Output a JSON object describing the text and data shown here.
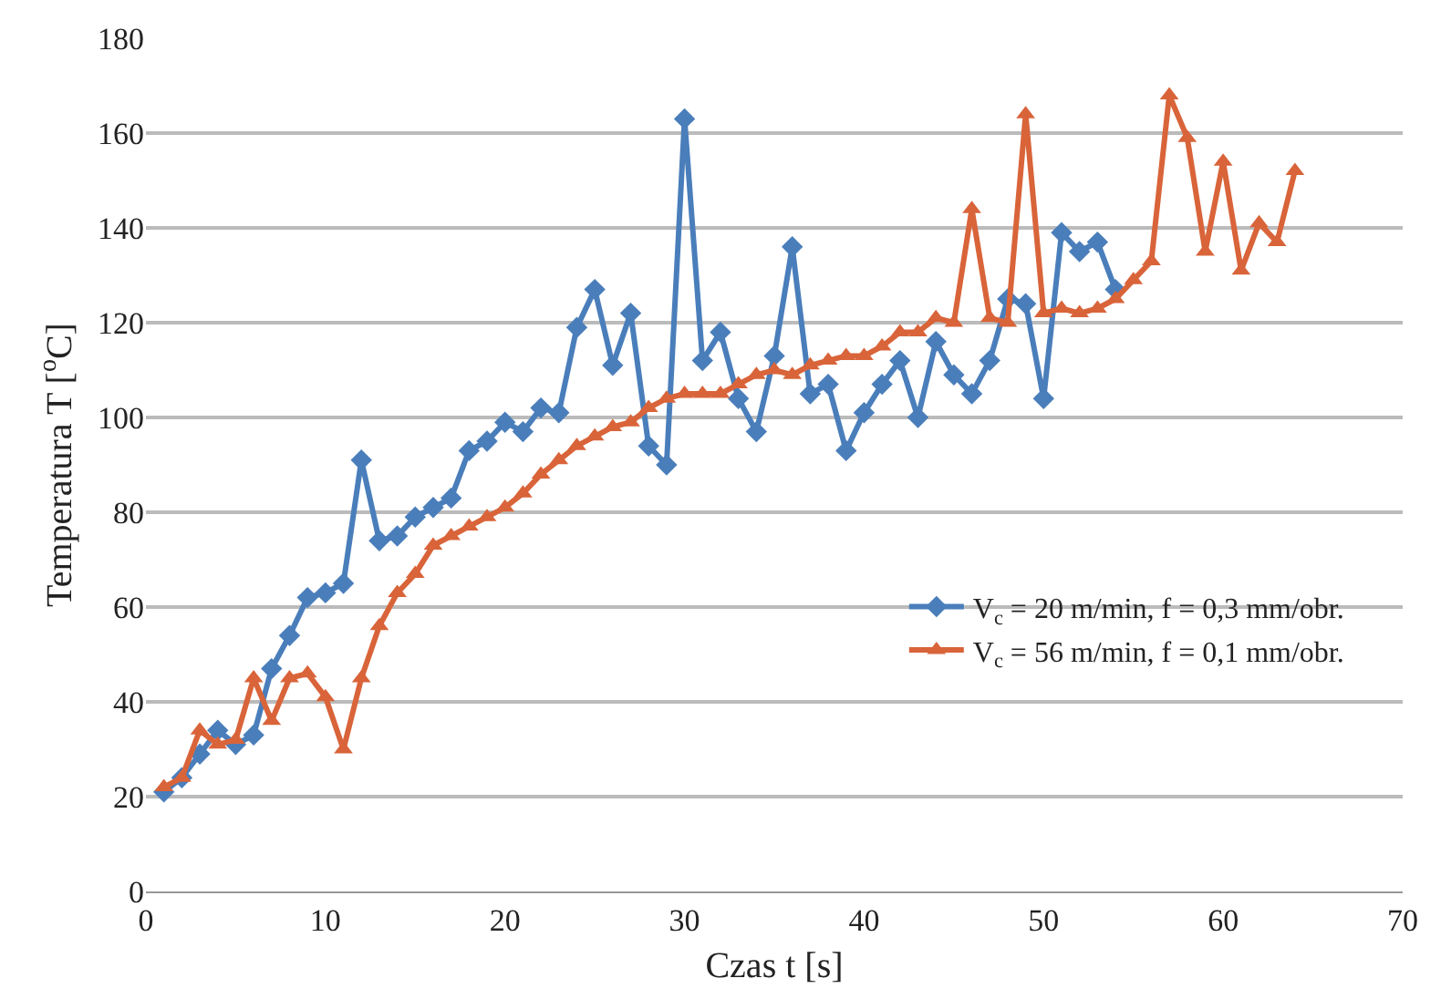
{
  "chart_data": {
    "type": "line",
    "xlabel": "Czas t [s]",
    "ylabel": "Temperatura T [$^{o}$C]",
    "xlim": [
      0,
      70
    ],
    "xticks": [
      0,
      10,
      20,
      30,
      40,
      50,
      60,
      70
    ],
    "ylim": [
      0,
      180
    ],
    "yticks": [
      0,
      20,
      40,
      60,
      80,
      100,
      120,
      140,
      160,
      180
    ],
    "grid": "y",
    "legend": "bottom right",
    "series": [
      {
        "name": "V$_{c}$ = 20 m/min, f = 0,3 mm/obr.",
        "color": "#4a7ebb",
        "marker": "diamond",
        "x": [
          1,
          2,
          3,
          4,
          5,
          6,
          7,
          8,
          9,
          10,
          11,
          12,
          13,
          14,
          15,
          16,
          17,
          18,
          19,
          20,
          21,
          22,
          23,
          24,
          25,
          26,
          27,
          28,
          29,
          30,
          31,
          32,
          33,
          34,
          35,
          36,
          37,
          38,
          39,
          40,
          41,
          42,
          43,
          44,
          45,
          46,
          47,
          48,
          49,
          50,
          51,
          52,
          53,
          54
        ],
        "values": [
          21,
          24,
          29,
          34,
          31,
          33,
          47,
          54,
          62,
          63,
          65,
          91,
          74,
          75,
          79,
          81,
          83,
          93,
          95,
          99,
          97,
          102,
          101,
          119,
          127,
          111,
          122,
          94,
          90,
          163,
          112,
          118,
          104,
          97,
          113,
          136,
          105,
          107,
          93,
          101,
          107,
          112,
          100,
          116,
          109,
          105,
          112,
          125,
          124,
          104,
          139,
          135,
          137,
          127
        ]
      },
      {
        "name": "V$_{c}$ = 56 m/min, f = 0,1 mm/obr.",
        "color": "#d9643a",
        "marker": "triangle",
        "x": [
          1,
          2,
          3,
          4,
          5,
          6,
          7,
          8,
          9,
          10,
          11,
          12,
          13,
          14,
          15,
          16,
          17,
          18,
          19,
          20,
          21,
          22,
          23,
          24,
          25,
          26,
          27,
          28,
          29,
          30,
          31,
          32,
          33,
          34,
          35,
          36,
          37,
          38,
          39,
          40,
          41,
          42,
          43,
          44,
          45,
          46,
          47,
          48,
          49,
          50,
          51,
          52,
          53,
          54,
          55,
          56,
          57,
          58,
          59,
          60,
          61,
          62,
          63,
          64
        ],
        "values": [
          22,
          24,
          34,
          31,
          32,
          45,
          36,
          45,
          46,
          41,
          30,
          45,
          56,
          63,
          67,
          73,
          75,
          77,
          79,
          81,
          84,
          88,
          91,
          94,
          96,
          98,
          99,
          102,
          104,
          105,
          105,
          105,
          107,
          109,
          110,
          109,
          111,
          112,
          113,
          113,
          115,
          118,
          118,
          121,
          120,
          144,
          121,
          120,
          164,
          122,
          123,
          122,
          123,
          125,
          129,
          133,
          168,
          159,
          135,
          154,
          131,
          141,
          137,
          152
        ]
      }
    ]
  }
}
